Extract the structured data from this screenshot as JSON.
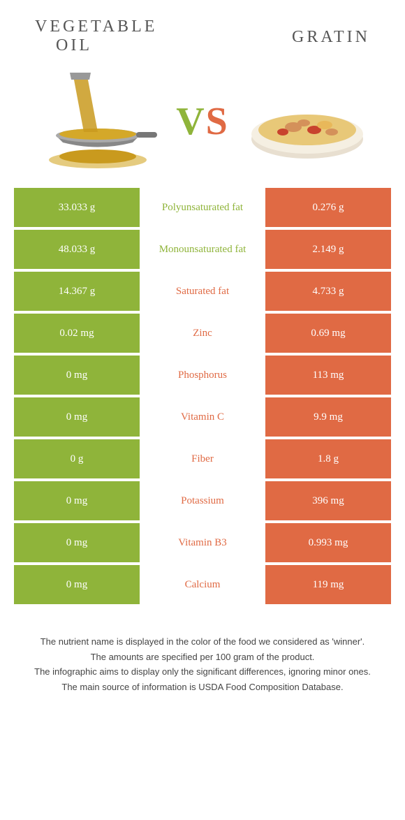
{
  "colors": {
    "green": "#8fb43a",
    "orange": "#e06a44",
    "text": "#555"
  },
  "header": {
    "left_line1": "VEGETABLE",
    "left_line2": "OIL",
    "right": "GRATIN"
  },
  "vs": {
    "v": "V",
    "s": "S"
  },
  "rows": [
    {
      "left": "33.033 g",
      "mid": "Polyunsaturated fat",
      "right": "0.276 g",
      "winner": "left"
    },
    {
      "left": "48.033 g",
      "mid": "Monounsaturated fat",
      "right": "2.149 g",
      "winner": "left"
    },
    {
      "left": "14.367 g",
      "mid": "Saturated fat",
      "right": "4.733 g",
      "winner": "right"
    },
    {
      "left": "0.02 mg",
      "mid": "Zinc",
      "right": "0.69 mg",
      "winner": "right"
    },
    {
      "left": "0 mg",
      "mid": "Phosphorus",
      "right": "113 mg",
      "winner": "right"
    },
    {
      "left": "0 mg",
      "mid": "Vitamin C",
      "right": "9.9 mg",
      "winner": "right"
    },
    {
      "left": "0 g",
      "mid": "Fiber",
      "right": "1.8 g",
      "winner": "right"
    },
    {
      "left": "0 mg",
      "mid": "Potassium",
      "right": "396 mg",
      "winner": "right"
    },
    {
      "left": "0 mg",
      "mid": "Vitamin B3",
      "right": "0.993 mg",
      "winner": "right"
    },
    {
      "left": "0 mg",
      "mid": "Calcium",
      "right": "119 mg",
      "winner": "right"
    }
  ],
  "footer": {
    "line1": "The nutrient name is displayed in the color of the food we considered as 'winner'.",
    "line2": "The amounts are specified per 100 gram of the product.",
    "line3": "The infographic aims to display only the significant differences, ignoring minor ones.",
    "line4": "The main source of information is USDA Food Composition Database."
  }
}
